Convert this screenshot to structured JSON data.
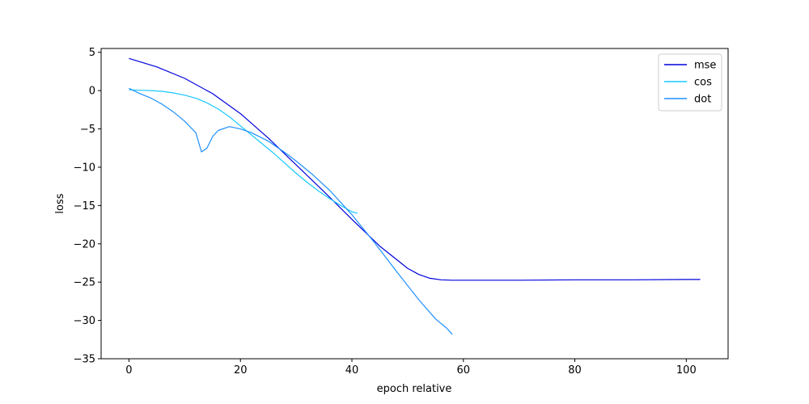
{
  "chart_data": {
    "type": "line",
    "title": "",
    "xlabel": "epoch relative",
    "ylabel": "loss",
    "xlim": [
      -5,
      107.5
    ],
    "ylim": [
      -35,
      5.5
    ],
    "xticks": [
      0,
      20,
      40,
      60,
      80,
      100
    ],
    "yticks": [
      5,
      0,
      -5,
      -10,
      -15,
      -20,
      -25,
      -30,
      -35
    ],
    "grid": false,
    "legend_position": "top-right",
    "series": [
      {
        "name": "mse",
        "color": "#0000dd",
        "x": [
          0,
          5,
          10,
          15,
          20,
          25,
          30,
          35,
          40,
          45,
          50,
          52,
          54,
          56,
          58,
          60,
          70,
          80,
          90,
          100,
          102.5
        ],
        "y": [
          4.2,
          3.1,
          1.6,
          -0.4,
          -3.0,
          -6.2,
          -9.7,
          -13.2,
          -16.8,
          -20.3,
          -23.2,
          -24.0,
          -24.5,
          -24.7,
          -24.75,
          -24.75,
          -24.75,
          -24.7,
          -24.7,
          -24.65,
          -24.65
        ]
      },
      {
        "name": "cos",
        "color": "#1ac8ff",
        "x": [
          0,
          2,
          4,
          6,
          8,
          10,
          12,
          14,
          16,
          18,
          20,
          22,
          24,
          26,
          28,
          30,
          32,
          34,
          36,
          38,
          40,
          41
        ],
        "y": [
          0.1,
          0.05,
          0.0,
          -0.1,
          -0.3,
          -0.6,
          -1.0,
          -1.6,
          -2.4,
          -3.4,
          -4.6,
          -5.8,
          -7.0,
          -8.2,
          -9.5,
          -10.8,
          -12.0,
          -13.1,
          -14.1,
          -15.0,
          -15.8,
          -16.0
        ]
      },
      {
        "name": "dot",
        "color": "#1e90ff",
        "x": [
          0,
          2,
          4,
          6,
          8,
          10,
          12,
          13,
          14,
          15,
          16,
          18,
          20,
          22,
          25,
          28,
          30,
          33,
          36,
          40,
          44,
          48,
          52,
          55,
          57,
          58
        ],
        "y": [
          0.3,
          -0.4,
          -1.0,
          -1.8,
          -2.8,
          -4.0,
          -5.5,
          -8.0,
          -7.5,
          -6.0,
          -5.2,
          -4.7,
          -5.0,
          -5.5,
          -6.6,
          -8.1,
          -9.2,
          -11.0,
          -13.0,
          -16.2,
          -19.8,
          -23.6,
          -27.3,
          -29.8,
          -31.0,
          -31.8
        ]
      }
    ]
  }
}
